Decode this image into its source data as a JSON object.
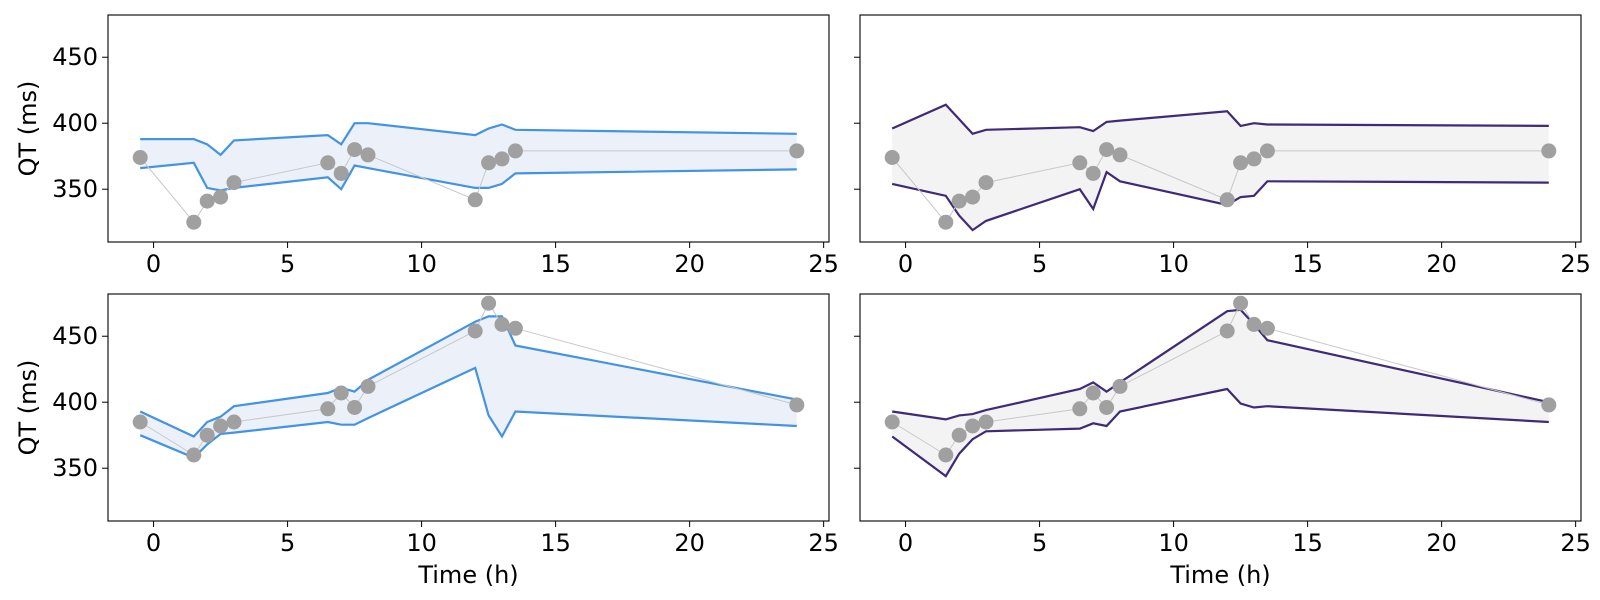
{
  "colors": {
    "blue_line": "#4393e5",
    "blue_fill": "#ecf1f9",
    "purple_line": "#3f2a78",
    "gray_fill": "#f3f3f3",
    "points": "#a0a0a0",
    "connector": "#c8c8c8"
  },
  "chart_data": [
    {
      "type": "area",
      "xlabel": "",
      "ylabel": "QT (ms)",
      "xlim": [
        -1.7,
        25.2
      ],
      "ylim": [
        310,
        482
      ],
      "xticks": [
        0,
        5,
        10,
        15,
        20,
        25
      ],
      "xtick_labels": [
        "0",
        "5",
        "10",
        "15",
        "20",
        "25"
      ],
      "yticks": [
        350,
        400,
        450
      ],
      "ytick_labels": [
        "350",
        "400",
        "450"
      ],
      "show_yticklabels": true,
      "line_color": "blue_line",
      "fill_color": "blue_fill",
      "band": {
        "x": [
          -0.5,
          1.5,
          2.0,
          2.5,
          3.0,
          6.5,
          7.0,
          7.5,
          8.0,
          12.0,
          12.5,
          13.0,
          13.5,
          24.0
        ],
        "upper": [
          388,
          388,
          384,
          376,
          387,
          391,
          384,
          400,
          400,
          391,
          396,
          399,
          395,
          392
        ],
        "lower": [
          366,
          370,
          351,
          349,
          351,
          359,
          350,
          368,
          366,
          351,
          351,
          354,
          362,
          365
        ]
      },
      "observed": {
        "x": [
          -0.5,
          1.5,
          2.0,
          2.5,
          3.0,
          6.5,
          7.0,
          7.5,
          8.0,
          12.0,
          12.5,
          13.0,
          13.5,
          24.0
        ],
        "y": [
          374,
          325,
          341,
          344,
          355,
          370,
          362,
          380,
          376,
          342,
          370,
          373,
          379,
          379
        ]
      }
    },
    {
      "type": "area",
      "xlabel": "",
      "ylabel": "",
      "xlim": [
        -1.7,
        25.2
      ],
      "ylim": [
        310,
        482
      ],
      "xticks": [
        0,
        5,
        10,
        15,
        20,
        25
      ],
      "xtick_labels": [
        "0",
        "5",
        "10",
        "15",
        "20",
        "25"
      ],
      "yticks": [
        350,
        400,
        450
      ],
      "ytick_labels": [
        "350",
        "400",
        "450"
      ],
      "show_yticklabels": false,
      "line_color": "purple_line",
      "fill_color": "gray_fill",
      "band": {
        "x": [
          -0.5,
          1.5,
          2.0,
          2.5,
          3.0,
          6.5,
          7.0,
          7.5,
          8.0,
          12.0,
          12.5,
          13.0,
          13.5,
          24.0
        ],
        "upper": [
          396,
          414,
          403,
          392,
          395,
          397,
          394,
          401,
          402,
          409,
          398,
          400,
          399,
          398
        ],
        "lower": [
          354,
          345,
          330,
          319,
          326,
          350,
          335,
          363,
          356,
          338,
          344,
          345,
          356,
          355
        ]
      },
      "observed": {
        "x": [
          -0.5,
          1.5,
          2.0,
          2.5,
          3.0,
          6.5,
          7.0,
          7.5,
          8.0,
          12.0,
          12.5,
          13.0,
          13.5,
          24.0
        ],
        "y": [
          374,
          325,
          341,
          344,
          355,
          370,
          362,
          380,
          376,
          342,
          370,
          373,
          379,
          379
        ]
      }
    },
    {
      "type": "area",
      "xlabel": "Time (h)",
      "ylabel": "QT (ms)",
      "xlim": [
        -1.7,
        25.2
      ],
      "ylim": [
        310,
        482
      ],
      "xticks": [
        0,
        5,
        10,
        15,
        20,
        25
      ],
      "xtick_labels": [
        "0",
        "5",
        "10",
        "15",
        "20",
        "25"
      ],
      "yticks": [
        350,
        400,
        450
      ],
      "ytick_labels": [
        "350",
        "400",
        "450"
      ],
      "show_yticklabels": true,
      "line_color": "blue_line",
      "fill_color": "blue_fill",
      "band": {
        "x": [
          -0.5,
          1.5,
          2.0,
          2.5,
          3.0,
          6.5,
          7.0,
          7.5,
          8.0,
          12.0,
          12.5,
          13.0,
          13.5,
          24.0
        ],
        "upper": [
          393,
          374,
          385,
          389,
          397,
          407,
          411,
          408,
          417,
          461,
          465,
          465,
          443,
          402
        ],
        "lower": [
          375,
          358,
          368,
          376,
          377,
          385,
          383,
          383,
          388,
          426,
          390,
          374,
          393,
          382
        ]
      },
      "observed": {
        "x": [
          -0.5,
          1.5,
          2.0,
          2.5,
          3.0,
          6.5,
          7.0,
          7.5,
          8.0,
          12.0,
          12.5,
          13.0,
          13.5,
          24.0
        ],
        "y": [
          385,
          360,
          375,
          382,
          385,
          395,
          407,
          396,
          412,
          454,
          475,
          459,
          456,
          398
        ]
      }
    },
    {
      "type": "area",
      "xlabel": "Time (h)",
      "ylabel": "",
      "xlim": [
        -1.7,
        25.2
      ],
      "ylim": [
        310,
        482
      ],
      "xticks": [
        0,
        5,
        10,
        15,
        20,
        25
      ],
      "xtick_labels": [
        "0",
        "5",
        "10",
        "15",
        "20",
        "25"
      ],
      "yticks": [
        350,
        400,
        450
      ],
      "ytick_labels": [
        "350",
        "400",
        "450"
      ],
      "show_yticklabels": false,
      "line_color": "purple_line",
      "fill_color": "gray_fill",
      "band": {
        "x": [
          -0.5,
          1.5,
          2.0,
          2.5,
          3.0,
          6.5,
          7.0,
          7.5,
          8.0,
          12.0,
          12.5,
          13.0,
          13.5,
          24.0
        ],
        "upper": [
          393,
          387,
          390,
          391,
          394,
          410,
          415,
          408,
          415,
          469,
          470,
          459,
          447,
          400
        ],
        "lower": [
          374,
          344,
          361,
          372,
          378,
          380,
          384,
          382,
          393,
          410,
          399,
          396,
          397,
          385
        ]
      },
      "observed": {
        "x": [
          -0.5,
          1.5,
          2.0,
          2.5,
          3.0,
          6.5,
          7.0,
          7.5,
          8.0,
          12.0,
          12.5,
          13.0,
          13.5,
          24.0
        ],
        "y": [
          385,
          360,
          375,
          382,
          385,
          395,
          407,
          396,
          412,
          454,
          475,
          459,
          456,
          398
        ]
      }
    }
  ]
}
